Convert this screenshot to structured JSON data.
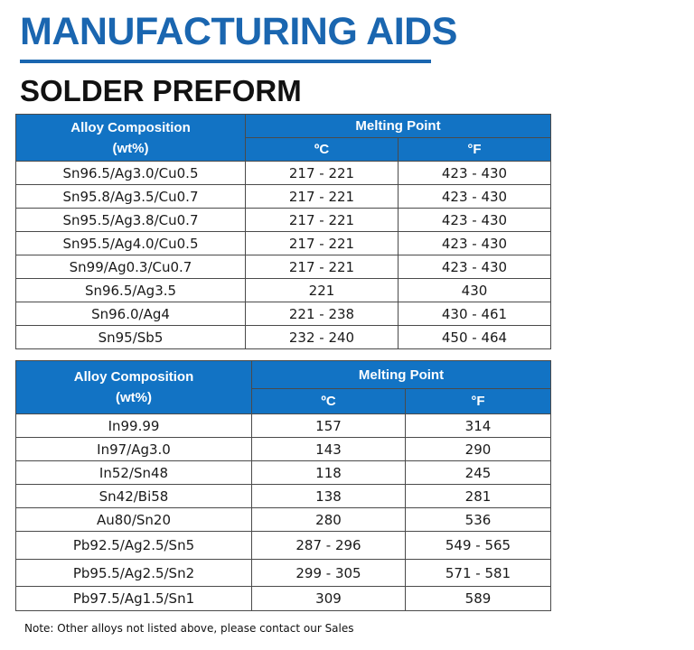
{
  "title": "MANUFACTURING AIDS",
  "subtitle": "SOLDER PREFORM",
  "colors": {
    "title": "#1a66b0",
    "header_bg": "#1273c4",
    "header_text": "#ffffff"
  },
  "tables": [
    {
      "header": {
        "composition": "Alloy Composition",
        "composition_unit": "(wt%)",
        "melting_point": "Melting Point",
        "celsius": "ºC",
        "fahrenheit": "°F"
      },
      "rows": [
        {
          "alloy": "Sn96.5/Ag3.0/Cu0.5",
          "c": "217 - 221",
          "f": "423 - 430"
        },
        {
          "alloy": "Sn95.8/Ag3.5/Cu0.7",
          "c": "217 - 221",
          "f": "423 - 430"
        },
        {
          "alloy": "Sn95.5/Ag3.8/Cu0.7",
          "c": "217 - 221",
          "f": "423 - 430"
        },
        {
          "alloy": "Sn95.5/Ag4.0/Cu0.5",
          "c": "217 - 221",
          "f": "423 - 430"
        },
        {
          "alloy": "Sn99/Ag0.3/Cu0.7",
          "c": "217 - 221",
          "f": "423 - 430"
        },
        {
          "alloy": "Sn96.5/Ag3.5",
          "c": "221",
          "f": "430"
        },
        {
          "alloy": "Sn96.0/Ag4",
          "c": "221 - 238",
          "f": "430 - 461"
        },
        {
          "alloy": "Sn95/Sb5",
          "c": "232 - 240",
          "f": "450 - 464"
        }
      ]
    },
    {
      "header": {
        "composition": "Alloy Composition",
        "composition_unit": "(wt%)",
        "melting_point": "Melting Point",
        "celsius": "ºC",
        "fahrenheit": "°F"
      },
      "rows": [
        {
          "alloy": "In99.99",
          "c": "157",
          "f": "314"
        },
        {
          "alloy": "In97/Ag3.0",
          "c": "143",
          "f": "290"
        },
        {
          "alloy": "In52/Sn48",
          "c": "118",
          "f": "245"
        },
        {
          "alloy": "Sn42/Bi58",
          "c": "138",
          "f": "281"
        },
        {
          "alloy": "Au80/Sn20",
          "c": "280",
          "f": "536"
        },
        {
          "alloy": "Pb92.5/Ag2.5/Sn5",
          "c": "287 - 296",
          "f": "549 - 565"
        },
        {
          "alloy": "Pb95.5/Ag2.5/Sn2",
          "c": "299 - 305",
          "f": "571 - 581"
        },
        {
          "alloy": "Pb97.5/Ag1.5/Sn1",
          "c": "309",
          "f": "589"
        }
      ]
    }
  ],
  "note": "Note: Other alloys not listed above, please contact our Sales"
}
